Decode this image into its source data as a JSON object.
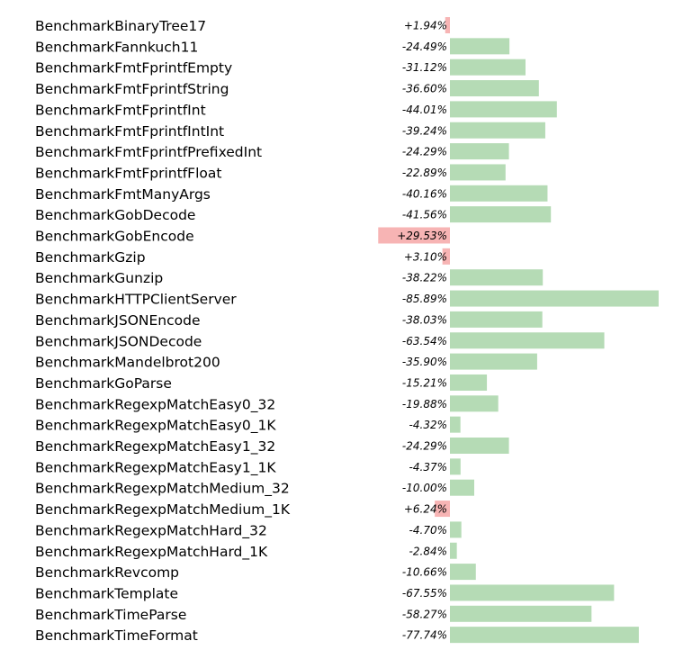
{
  "chart_data": {
    "type": "bar",
    "orientation": "horizontal",
    "value_format": "signed-percent",
    "colors": {
      "negative": "#b5dbb5",
      "positive": "#f7b4b4"
    },
    "categories": [
      "BenchmarkBinaryTree17",
      "BenchmarkFannkuch11",
      "BenchmarkFmtFprintfEmpty",
      "BenchmarkFmtFprintfString",
      "BenchmarkFmtFprintfInt",
      "BenchmarkFmtFprintfIntInt",
      "BenchmarkFmtFprintfPrefixedInt",
      "BenchmarkFmtFprintfFloat",
      "BenchmarkFmtManyArgs",
      "BenchmarkGobDecode",
      "BenchmarkGobEncode",
      "BenchmarkGzip",
      "BenchmarkGunzip",
      "BenchmarkHTTPClientServer",
      "BenchmarkJSONEncode",
      "BenchmarkJSONDecode",
      "BenchmarkMandelbrot200",
      "BenchmarkGoParse",
      "BenchmarkRegexpMatchEasy0_32",
      "BenchmarkRegexpMatchEasy0_1K",
      "BenchmarkRegexpMatchEasy1_32",
      "BenchmarkRegexpMatchEasy1_1K",
      "BenchmarkRegexpMatchMedium_32",
      "BenchmarkRegexpMatchMedium_1K",
      "BenchmarkRegexpMatchHard_32",
      "BenchmarkRegexpMatchHard_1K",
      "BenchmarkRevcomp",
      "BenchmarkTemplate",
      "BenchmarkTimeParse",
      "BenchmarkTimeFormat"
    ],
    "values": [
      1.94,
      -24.49,
      -31.12,
      -36.6,
      -44.01,
      -39.24,
      -24.29,
      -22.89,
      -40.16,
      -41.56,
      29.53,
      3.1,
      -38.22,
      -85.89,
      -38.03,
      -63.54,
      -35.9,
      -15.21,
      -19.88,
      -4.32,
      -24.29,
      -4.37,
      -10.0,
      6.24,
      -4.7,
      -2.84,
      -10.66,
      -67.55,
      -58.27,
      -77.74
    ],
    "labels": [
      "+1.94%",
      "-24.49%",
      "-31.12%",
      "-36.60%",
      "-44.01%",
      "-39.24%",
      "-24.29%",
      "-22.89%",
      "-40.16%",
      "-41.56%",
      "+29.53%",
      "+3.10%",
      "-38.22%",
      "-85.89%",
      "-38.03%",
      "-63.54%",
      "-35.90%",
      "-15.21%",
      "-19.88%",
      "-4.32%",
      "-24.29%",
      "-4.37%",
      "-10.00%",
      "+6.24%",
      "-4.70%",
      "-2.84%",
      "-10.66%",
      "-67.55%",
      "-58.27%",
      "-77.74%"
    ]
  }
}
